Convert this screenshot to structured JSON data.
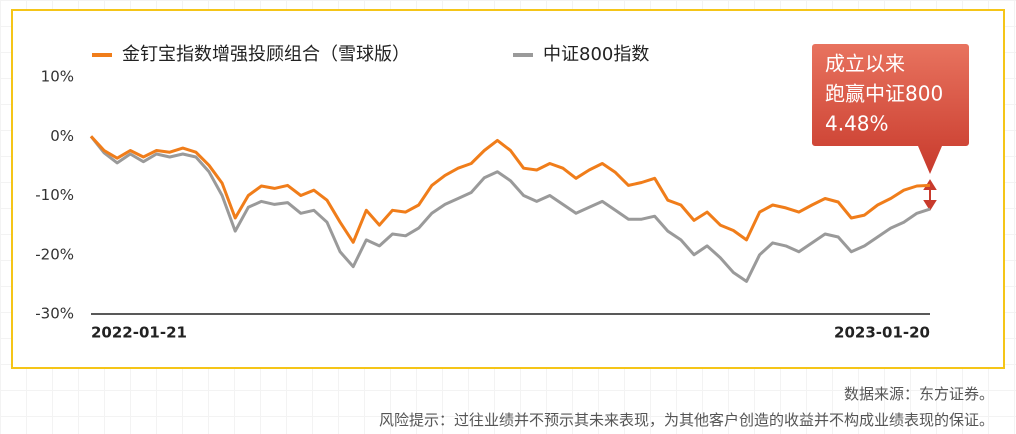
{
  "chart_data": {
    "type": "line",
    "categories": [
      "2022-01-21",
      null,
      null,
      null,
      null,
      null,
      null,
      null,
      null,
      null,
      null,
      null,
      null,
      null,
      null,
      null,
      null,
      null,
      null,
      null,
      null,
      null,
      null,
      null,
      null,
      null,
      null,
      null,
      null,
      null,
      null,
      null,
      null,
      null,
      null,
      null,
      null,
      null,
      null,
      null,
      null,
      null,
      null,
      null,
      null,
      null,
      null,
      null,
      null,
      null,
      null,
      null,
      null,
      null,
      null,
      null,
      null,
      null,
      null,
      null,
      null,
      null,
      null,
      null,
      "2023-01-20"
    ],
    "series": [
      {
        "name": "金钉宝指数增强投顾组合（雪球版）",
        "color": "#f07d1a",
        "values": [
          0,
          -2.4,
          -3.7,
          -2.4,
          -3.5,
          -2.4,
          -2.7,
          -2,
          -2.7,
          -4.9,
          -7.9,
          -13.8,
          -10,
          -8.4,
          -8.8,
          -8.3,
          -10,
          -9.1,
          -10.8,
          -14.5,
          -17.9,
          -12.5,
          -15,
          -12.5,
          -12.8,
          -11.6,
          -8.3,
          -6.6,
          -5.4,
          -4.6,
          -2.4,
          -0.7,
          -2.4,
          -5.4,
          -5.7,
          -4.6,
          -5.4,
          -7.1,
          -5.7,
          -4.6,
          -6.1,
          -8.3,
          -7.8,
          -7.1,
          -10.8,
          -11.6,
          -14.2,
          -12.8,
          -15,
          -15.9,
          -17.5,
          -12.8,
          -11.6,
          -12.1,
          -12.8,
          -11.6,
          -10.5,
          -11.1,
          -13.8,
          -13.3,
          -11.6,
          -10.5,
          -9.1,
          -8.4,
          -8.3
        ]
      },
      {
        "name": "中证800指数",
        "color": "#9a9a9a",
        "values": [
          0,
          -2.8,
          -4.5,
          -3,
          -4.3,
          -3,
          -3.5,
          -3,
          -3.5,
          -6,
          -10,
          -16,
          -12,
          -11,
          -11.5,
          -11.2,
          -13,
          -12.5,
          -14.5,
          -19.5,
          -22,
          -17.5,
          -18.5,
          -16.5,
          -16.8,
          -15.5,
          -13,
          -11.5,
          -10.5,
          -9.5,
          -7,
          -6,
          -7.5,
          -10,
          -11,
          -10,
          -11.5,
          -13,
          -12,
          -11,
          -12.5,
          -14,
          -14,
          -13.5,
          -16,
          -17.5,
          -20,
          -18.5,
          -20.5,
          -23,
          -24.5,
          -20,
          -18,
          -18.5,
          -19.5,
          -18,
          -16.5,
          -17,
          -19.5,
          -18.5,
          -17,
          -15.5,
          -14.5,
          -13,
          -12.3
        ]
      }
    ],
    "ylim": [
      -30,
      10
    ],
    "yticks": [
      {
        "value": -30,
        "label": "-30%"
      },
      {
        "value": -20,
        "label": "-20%"
      },
      {
        "value": -10,
        "label": "-10%"
      },
      {
        "value": 0,
        "label": "0%"
      },
      {
        "value": 10,
        "label": "10%"
      }
    ],
    "annotation": [
      "成立以来",
      "跑赢中证800",
      "4.48%"
    ]
  },
  "footer": {
    "source": "数据来源：东方证券。",
    "disclaimer": "风险提示：过往业绩并不预示其未来表现，为其他客户创造的收益并不构成业绩表现的保证。"
  }
}
